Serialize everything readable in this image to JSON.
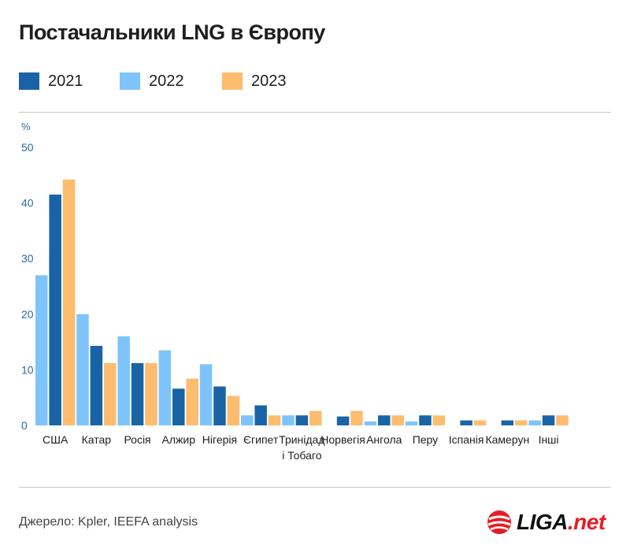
{
  "title": "Постачальники LNG в Європу",
  "source": "Джерело: Kpler, IEEFA analysis",
  "logo": {
    "brand": "LIGA",
    "suffix": ".net"
  },
  "colors": {
    "2021": "#1a64a6",
    "2022": "#7ec4fa",
    "2023": "#fdbc6e",
    "axis_text": "#2b6ba6"
  },
  "chart_data": {
    "type": "bar",
    "title": "Постачальники LNG в Європу",
    "ylabel": "%",
    "xlabel": "",
    "ylim": [
      0,
      50
    ],
    "yticks": [
      0,
      10,
      20,
      30,
      40,
      50
    ],
    "categories": [
      "США",
      "Катар",
      "Росія",
      "Алжир",
      "Нігерія",
      "Єгипет",
      "Тринідад і Тобаго",
      "Норвегія",
      "Ангола",
      "Перу",
      "Іспанія",
      "Камерун",
      "Інші"
    ],
    "series": [
      {
        "name": "2022",
        "values": [
          27,
          20,
          16,
          13.5,
          11,
          1.8,
          1.8,
          0,
          0.7,
          0.7,
          0,
          0,
          0.9
        ]
      },
      {
        "name": "2021",
        "values": [
          41.5,
          14.3,
          11.2,
          6.6,
          7,
          3.6,
          1.8,
          1.6,
          1.8,
          1.8,
          0.9,
          0.9,
          1.8
        ]
      },
      {
        "name": "2023",
        "values": [
          44.2,
          11.2,
          11.2,
          8.4,
          5.3,
          1.8,
          2.6,
          2.6,
          1.8,
          1.8,
          0.9,
          0.9,
          1.8
        ]
      }
    ]
  }
}
